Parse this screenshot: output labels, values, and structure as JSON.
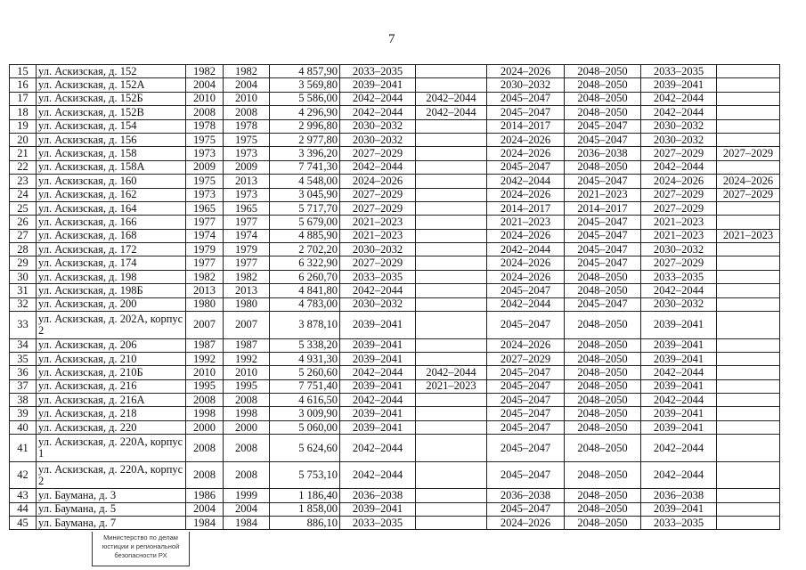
{
  "page_number": "7",
  "stamp": {
    "lines": [
      "Министерство по делам",
      "юстиции и региональной",
      "безопасности РХ"
    ]
  },
  "rows": [
    [
      "15",
      "ул. Аскизская, д. 152",
      "1982",
      "1982",
      "4 857,90",
      "2033–2035",
      "",
      "2024–2026",
      "2048–2050",
      "2033–2035",
      ""
    ],
    [
      "16",
      "ул. Аскизская, д. 152А",
      "2004",
      "2004",
      "3 569,80",
      "2039–2041",
      "",
      "2030–2032",
      "2048–2050",
      "2039–2041",
      ""
    ],
    [
      "17",
      "ул. Аскизская, д. 152Б",
      "2010",
      "2010",
      "5 586,00",
      "2042–2044",
      "2042–2044",
      "2045–2047",
      "2048–2050",
      "2042–2044",
      ""
    ],
    [
      "18",
      "ул. Аскизская, д. 152В",
      "2008",
      "2008",
      "4 296,90",
      "2042–2044",
      "2042–2044",
      "2045–2047",
      "2048–2050",
      "2042–2044",
      ""
    ],
    [
      "19",
      "ул. Аскизская, д. 154",
      "1978",
      "1978",
      "2 996,80",
      "2030–2032",
      "",
      "2014–2017",
      "2045–2047",
      "2030–2032",
      ""
    ],
    [
      "20",
      "ул. Аскизская, д. 156",
      "1975",
      "1975",
      "2 977,80",
      "2030–2032",
      "",
      "2024–2026",
      "2045–2047",
      "2030–2032",
      ""
    ],
    [
      "21",
      "ул. Аскизская, д. 158",
      "1973",
      "1973",
      "3 396,20",
      "2027–2029",
      "",
      "2024–2026",
      "2036–2038",
      "2027–2029",
      "2027–2029"
    ],
    [
      "22",
      "ул. Аскизская, д. 158А",
      "2009",
      "2009",
      "7 741,30",
      "2042–2044",
      "",
      "2045–2047",
      "2048–2050",
      "2042–2044",
      ""
    ],
    [
      "23",
      "ул. Аскизская, д. 160",
      "1975",
      "2013",
      "4 548,00",
      "2024–2026",
      "",
      "2042–2044",
      "2045–2047",
      "2024–2026",
      "2024–2026"
    ],
    [
      "24",
      "ул. Аскизская, д. 162",
      "1973",
      "1973",
      "3 045,90",
      "2027–2029",
      "",
      "2024–2026",
      "2021–2023",
      "2027–2029",
      "2027–2029"
    ],
    [
      "25",
      "ул. Аскизская, д. 164",
      "1965",
      "1965",
      "5 717,70",
      "2027–2029",
      "",
      "2014–2017",
      "2014–2017",
      "2027–2029",
      ""
    ],
    [
      "26",
      "ул. Аскизская, д. 166",
      "1977",
      "1977",
      "5 679,00",
      "2021–2023",
      "",
      "2021–2023",
      "2045–2047",
      "2021–2023",
      ""
    ],
    [
      "27",
      "ул. Аскизская, д. 168",
      "1974",
      "1974",
      "4 885,90",
      "2021–2023",
      "",
      "2024–2026",
      "2045–2047",
      "2021–2023",
      "2021–2023"
    ],
    [
      "28",
      "ул. Аскизская, д. 172",
      "1979",
      "1979",
      "2 702,20",
      "2030–2032",
      "",
      "2042–2044",
      "2045–2047",
      "2030–2032",
      ""
    ],
    [
      "29",
      "ул. Аскизская, д. 174",
      "1977",
      "1977",
      "6 322,90",
      "2027–2029",
      "",
      "2024–2026",
      "2045–2047",
      "2027–2029",
      ""
    ],
    [
      "30",
      "ул. Аскизская, д. 198",
      "1982",
      "1982",
      "6 260,70",
      "2033–2035",
      "",
      "2024–2026",
      "2048–2050",
      "2033–2035",
      ""
    ],
    [
      "31",
      "ул. Аскизская, д. 198Б",
      "2013",
      "2013",
      "4 841,80",
      "2042–2044",
      "",
      "2045–2047",
      "2048–2050",
      "2042–2044",
      ""
    ],
    [
      "32",
      "ул. Аскизская, д. 200",
      "1980",
      "1980",
      "4 783,00",
      "2030–2032",
      "",
      "2042–2044",
      "2045–2047",
      "2030–2032",
      ""
    ],
    [
      "33",
      "ул. Аскизская, д. 202А, корпус 2",
      "2007",
      "2007",
      "3 878,10",
      "2039–2041",
      "",
      "2045–2047",
      "2048–2050",
      "2039–2041",
      ""
    ],
    [
      "34",
      "ул. Аскизская, д. 206",
      "1987",
      "1987",
      "5 338,20",
      "2039–2041",
      "",
      "2024–2026",
      "2048–2050",
      "2039–2041",
      ""
    ],
    [
      "35",
      "ул. Аскизская, д. 210",
      "1992",
      "1992",
      "4 931,30",
      "2039–2041",
      "",
      "2027–2029",
      "2048–2050",
      "2039–2041",
      ""
    ],
    [
      "36",
      "ул. Аскизская, д. 210Б",
      "2010",
      "2010",
      "5 260,60",
      "2042–2044",
      "2042–2044",
      "2045–2047",
      "2048–2050",
      "2042–2044",
      ""
    ],
    [
      "37",
      "ул. Аскизская, д. 216",
      "1995",
      "1995",
      "7 751,40",
      "2039–2041",
      "2021–2023",
      "2045–2047",
      "2048–2050",
      "2039–2041",
      ""
    ],
    [
      "38",
      "ул. Аскизская, д. 216А",
      "2008",
      "2008",
      "4 616,50",
      "2042–2044",
      "",
      "2045–2047",
      "2048–2050",
      "2042–2044",
      ""
    ],
    [
      "39",
      "ул. Аскизская, д. 218",
      "1998",
      "1998",
      "3 009,90",
      "2039–2041",
      "",
      "2045–2047",
      "2048–2050",
      "2039–2041",
      ""
    ],
    [
      "40",
      "ул. Аскизская, д. 220",
      "2000",
      "2000",
      "5 060,00",
      "2039–2041",
      "",
      "2045–2047",
      "2048–2050",
      "2039–2041",
      ""
    ],
    [
      "41",
      "ул. Аскизская, д. 220А, корпус 1",
      "2008",
      "2008",
      "5 624,60",
      "2042–2044",
      "",
      "2045–2047",
      "2048–2050",
      "2042–2044",
      ""
    ],
    [
      "42",
      "ул. Аскизская, д. 220А, корпус 2",
      "2008",
      "2008",
      "5 753,10",
      "2042–2044",
      "",
      "2045–2047",
      "2048–2050",
      "2042–2044",
      ""
    ],
    [
      "43",
      "ул. Баумана, д. 3",
      "1986",
      "1999",
      "1 186,40",
      "2036–2038",
      "",
      "2036–2038",
      "2048–2050",
      "2036–2038",
      ""
    ],
    [
      "44",
      "ул. Баумана, д. 5",
      "2004",
      "2004",
      "1 858,00",
      "2039–2041",
      "",
      "2045–2047",
      "2048–2050",
      "2039–2041",
      ""
    ],
    [
      "45",
      "ул. Баумана, д. 7",
      "1984",
      "1984",
      "886,10",
      "2033–2035",
      "",
      "2024–2026",
      "2048–2050",
      "2033–2035",
      ""
    ]
  ]
}
